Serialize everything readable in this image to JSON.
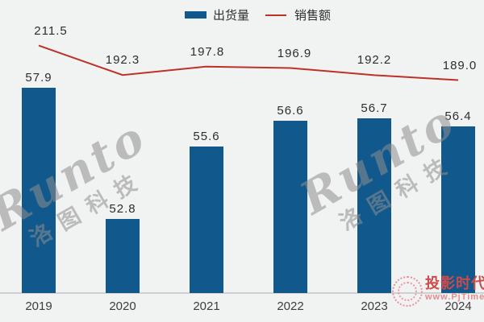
{
  "legend": {
    "bar_label": "出货量",
    "line_label": "销售额"
  },
  "chart_data": {
    "type": "bar",
    "categories": [
      "2019",
      "2020",
      "2021",
      "2022",
      "2023",
      "2024"
    ],
    "series": [
      {
        "name": "出货量",
        "type": "bar",
        "values": [
          57.9,
          52.8,
          55.6,
          56.6,
          56.7,
          56.4
        ],
        "color": "#11598c"
      },
      {
        "name": "销售额",
        "type": "line",
        "values": [
          211.5,
          192.3,
          197.8,
          196.9,
          192.2,
          189.0
        ],
        "color": "#bc3228"
      }
    ],
    "title": "",
    "xlabel": "",
    "ylabel": "",
    "bar_ylim": [
      49.9,
      60
    ],
    "line_ylim": [
      160,
      230
    ],
    "grid": false,
    "axes_hidden": true,
    "legend_position": "top-center",
    "value_labels": "one-decimal, shown above bars and line points"
  },
  "watermarks": {
    "runto": {
      "brand_en": "Runto",
      "brand_cn": "洛图科技"
    },
    "pjtime": {
      "name": "投影时代",
      "url": "www.PjTime.com"
    }
  },
  "colors": {
    "bar": "#11598c",
    "line": "#bc3228",
    "background": "#f1f2f2",
    "axis_line": "#cfcfcf",
    "label_text": "#2d2d2d"
  }
}
